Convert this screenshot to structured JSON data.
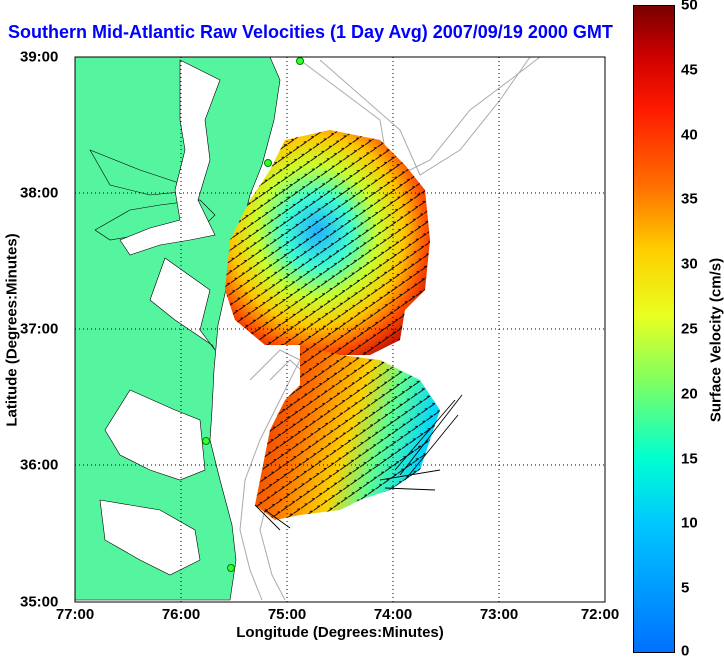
{
  "title": "Southern Mid-Atlantic Raw Velocities (1 Day Avg) 2007/09/19 2000 GMT",
  "x_label": "Longitude (Degrees:Minutes)",
  "y_label": "Latitude (Degrees:Minutes)",
  "x_ticks": [
    "77:00",
    "76:00",
    "75:00",
    "74:00",
    "73:00",
    "72:00"
  ],
  "y_ticks": [
    "39:00",
    "38:00",
    "37:00",
    "36:00",
    "35:00"
  ],
  "colorbar": {
    "label": "Surface Velocity (cm/s)",
    "ticks": [
      "50",
      "45",
      "40",
      "35",
      "30",
      "25",
      "20",
      "15",
      "10",
      "5",
      "0"
    ],
    "range": [
      0,
      50
    ]
  },
  "colors": {
    "land": "#55f5a0",
    "title": "#0000ff",
    "grid": "#000000",
    "bathymetry": "#aaaaaa"
  },
  "map": {
    "lon_range": [
      -77,
      -72
    ],
    "lat_range": [
      35,
      39
    ]
  }
}
